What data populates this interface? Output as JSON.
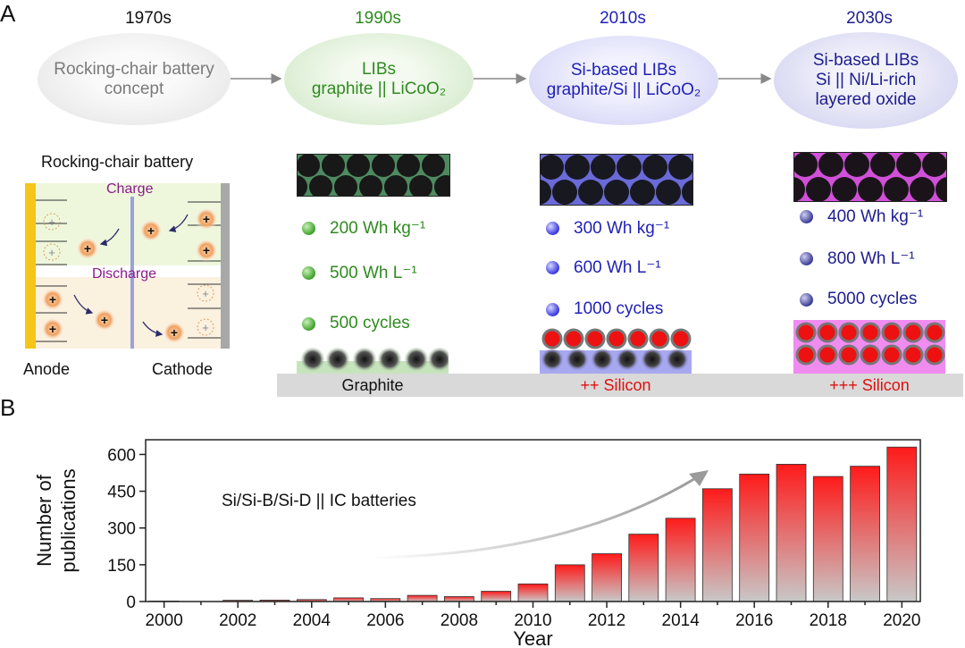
{
  "panel_a": {
    "letter": "A",
    "eras": [
      {
        "year": "1970s",
        "lines": [
          "Rocking-chair battery",
          "concept"
        ]
      },
      {
        "year": "1990s",
        "lines": [
          "LIBs",
          "graphite || LiCoO₂"
        ]
      },
      {
        "year": "2010s",
        "lines": [
          "Si-based LIBs",
          "graphite/Si || LiCoO₂"
        ]
      },
      {
        "year": "2030s",
        "lines": [
          "Si-based LIBs",
          "Si || Ni/Li-rich",
          "layered oxide"
        ]
      }
    ],
    "rocking_chair": {
      "title": "Rocking-chair battery",
      "charge": "Charge",
      "discharge": "Discharge",
      "anode": "Anode",
      "cathode": "Cathode",
      "ion_symbol": "+"
    },
    "metrics": [
      {
        "energy_mass": "200 Wh kg⁻¹",
        "energy_vol": "500 Wh L⁻¹",
        "cycles": "500 cycles",
        "anode": "Graphite",
        "color": "#2e8b1e"
      },
      {
        "energy_mass": "300 Wh kg⁻¹",
        "energy_vol": "600 Wh L⁻¹",
        "cycles": "1000 cycles",
        "anode": "++ Silicon",
        "color": "#1f1fb8"
      },
      {
        "energy_mass": "400 Wh kg⁻¹",
        "energy_vol": "800 Wh L⁻¹",
        "cycles": "5000 cycles",
        "anode": "+++ Silicon",
        "color": "#1d1d8f"
      }
    ]
  },
  "panel_b": {
    "letter": "B",
    "annotation": "Si/Si-B/Si-D || IC batteries"
  },
  "chart_data": {
    "type": "bar",
    "title": "",
    "xlabel": "Year",
    "ylabel_lines": [
      "Number of",
      "publications"
    ],
    "categories": [
      "2000",
      "2001",
      "2002",
      "2003",
      "2004",
      "2005",
      "2006",
      "2007",
      "2008",
      "2009",
      "2010",
      "2011",
      "2012",
      "2013",
      "2014",
      "2015",
      "2016",
      "2017",
      "2018",
      "2019",
      "2020"
    ],
    "values": [
      2,
      0,
      5,
      6,
      8,
      15,
      12,
      25,
      20,
      42,
      72,
      150,
      195,
      275,
      340,
      460,
      520,
      560,
      510,
      552,
      630
    ],
    "ylim": [
      0,
      660
    ],
    "yticks": [
      "0",
      "150",
      "300",
      "450",
      "600"
    ],
    "xticks": [
      "2000",
      "2002",
      "2004",
      "2006",
      "2008",
      "2010",
      "2012",
      "2014",
      "2016",
      "2018",
      "2020"
    ],
    "bar_color_top": "#ff1a1a",
    "bar_color_bottom": "#c8c8c8",
    "grid": false
  }
}
